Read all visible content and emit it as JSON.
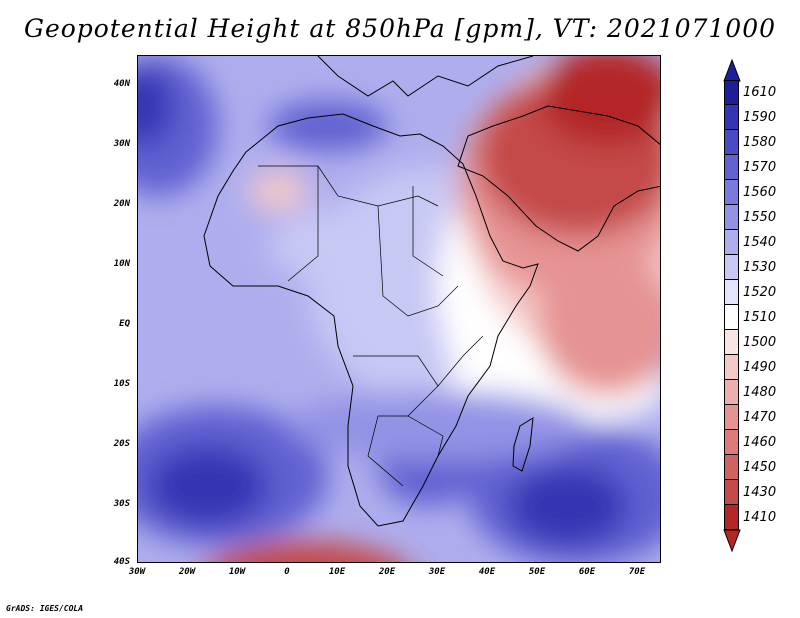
{
  "title": "Geopotential Height at 850hPa [gpm], VT: 2021071000",
  "credit": "GrADS: IGES/COLA",
  "lat_labels": [
    "40N",
    "30N",
    "20N",
    "10N",
    "EQ",
    "10S",
    "20S",
    "30S",
    "40S"
  ],
  "lon_labels": [
    "30W",
    "20W",
    "10W",
    "0",
    "10E",
    "20E",
    "30E",
    "40E",
    "50E",
    "60E",
    "70E"
  ],
  "colorbar": {
    "labels": [
      "1610",
      "1590",
      "1580",
      "1570",
      "1560",
      "1550",
      "1540",
      "1530",
      "1520",
      "1510",
      "1500",
      "1490",
      "1480",
      "1470",
      "1460",
      "1450",
      "1430",
      "1410"
    ],
    "colors": [
      "#1e1e9a",
      "#3434b4",
      "#4a4ac4",
      "#6161d2",
      "#7a7ade",
      "#9393e6",
      "#aeaeee",
      "#c8c8f5",
      "#e3e3fa",
      "#ffffff",
      "#fae3e3",
      "#f5c8c8",
      "#eeaeae",
      "#e69393",
      "#de7a7a",
      "#d26161",
      "#c44a4a",
      "#b42626"
    ]
  },
  "map_colors": {
    "ocean_base": "#aeaeee",
    "high_dark": "#3434b4",
    "high": "#6161d2",
    "mid": "#9393e6",
    "light": "#c8c8f5",
    "white": "#ffffff",
    "low_light": "#f5c8c8",
    "low": "#e69393",
    "low_dark": "#c44a4a",
    "low_darkest": "#b42626"
  }
}
